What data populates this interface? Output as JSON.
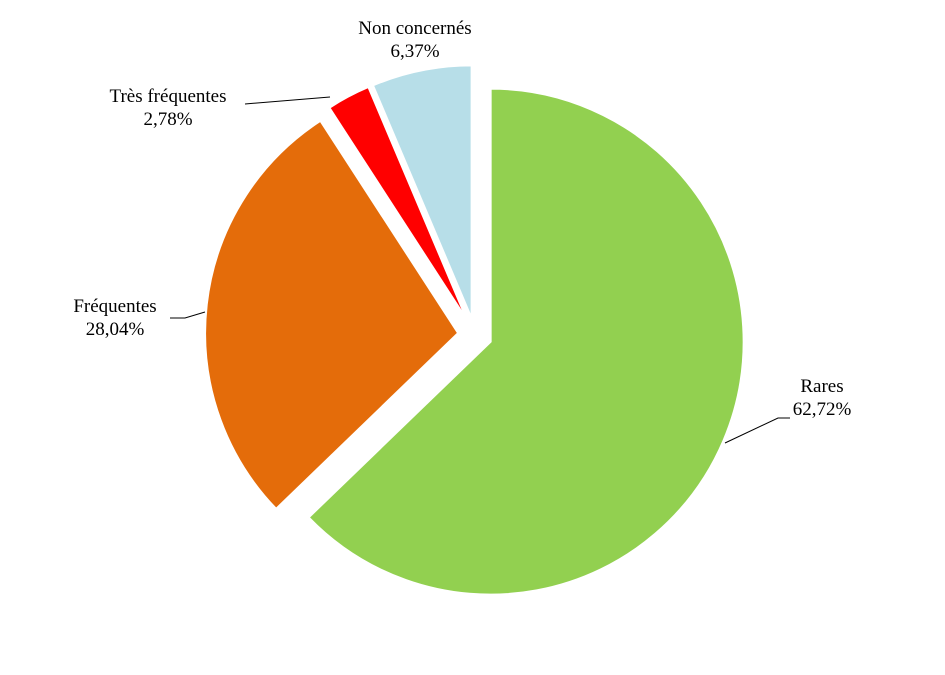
{
  "chart_data": {
    "type": "pie",
    "title": "",
    "start_angle": "12 o'clock",
    "direction": "clockwise",
    "exploded": true,
    "slices": [
      {
        "label": "Rares",
        "value": 62.72,
        "display": "62,72%",
        "color": "#92D050"
      },
      {
        "label": "Fréquentes",
        "value": 28.04,
        "display": "28,04%",
        "color": "#E46C0A"
      },
      {
        "label": "Très fréquentes",
        "value": 2.78,
        "display": "2,78%",
        "color": "#FF0000"
      },
      {
        "label": "Non concernés",
        "value": 6.37,
        "display": "6,37%",
        "color": "#B7DEE8"
      }
    ]
  }
}
